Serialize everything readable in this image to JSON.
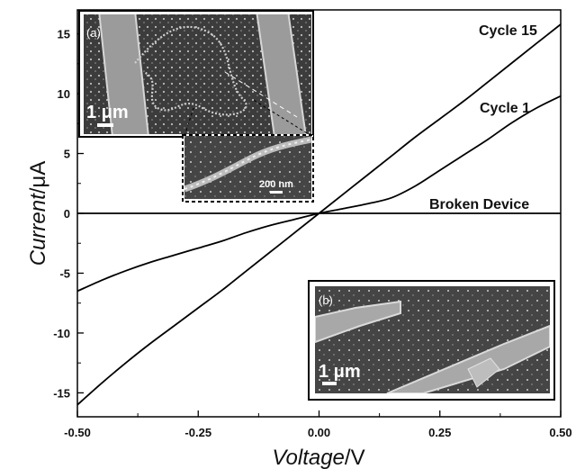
{
  "chart_data": {
    "type": "line",
    "xlabel_main": "Voltage",
    "xlabel_unit": "/V",
    "ylabel_main": "Current",
    "ylabel_unit": "/μA",
    "xlim": [
      -0.5,
      0.5
    ],
    "ylim": [
      -17,
      17
    ],
    "x_ticks": [
      {
        "value": -0.5,
        "label": "-0.50"
      },
      {
        "value": -0.25,
        "label": "-0.25"
      },
      {
        "value": 0,
        "label": "0.00"
      },
      {
        "value": 0.25,
        "label": "0.25"
      },
      {
        "value": 0.5,
        "label": "0.50"
      }
    ],
    "y_ticks": [
      {
        "value": -15,
        "label": "-15"
      },
      {
        "value": -10,
        "label": "-10"
      },
      {
        "value": -5,
        "label": "-5"
      },
      {
        "value": 0,
        "label": "0"
      },
      {
        "value": 5,
        "label": "5"
      },
      {
        "value": 10,
        "label": "10"
      },
      {
        "value": 15,
        "label": "15"
      }
    ],
    "series": [
      {
        "name": "Cycle 15",
        "x": [
          -0.5,
          -0.45,
          -0.4,
          -0.35,
          -0.3,
          -0.25,
          -0.2,
          -0.15,
          -0.1,
          -0.05,
          0,
          0.05,
          0.1,
          0.15,
          0.2,
          0.25,
          0.3,
          0.35,
          0.4,
          0.45,
          0.5
        ],
        "y": [
          -16.0,
          -14.2,
          -12.5,
          -10.9,
          -9.4,
          -7.9,
          -6.4,
          -4.8,
          -3.2,
          -1.6,
          0,
          1.6,
          3.2,
          4.8,
          6.4,
          7.9,
          9.4,
          11.0,
          12.6,
          14.2,
          15.8
        ]
      },
      {
        "name": "Cycle 1",
        "x": [
          -0.5,
          -0.45,
          -0.4,
          -0.35,
          -0.3,
          -0.25,
          -0.2,
          -0.15,
          -0.1,
          -0.05,
          0,
          0.05,
          0.1,
          0.15,
          0.2,
          0.25,
          0.3,
          0.35,
          0.4,
          0.45,
          0.5
        ],
        "y": [
          -6.5,
          -5.6,
          -4.8,
          -4.1,
          -3.5,
          -2.9,
          -2.3,
          -1.6,
          -1.0,
          -0.5,
          0,
          0.4,
          0.8,
          1.3,
          2.3,
          3.6,
          4.9,
          6.2,
          7.6,
          8.8,
          9.8
        ]
      },
      {
        "name": "Broken Device",
        "x": [
          -0.5,
          0.5
        ],
        "y": [
          0,
          0
        ]
      }
    ],
    "annotations": {
      "inset_a_label": "(a)",
      "inset_a_scale": "1 μm",
      "inset_a_zoom_scale": "200 nm",
      "inset_b_label": "(b)",
      "inset_b_scale": "1 μm"
    },
    "colors": {
      "line": "#000000",
      "sem_background": "#3a3a3a"
    }
  }
}
